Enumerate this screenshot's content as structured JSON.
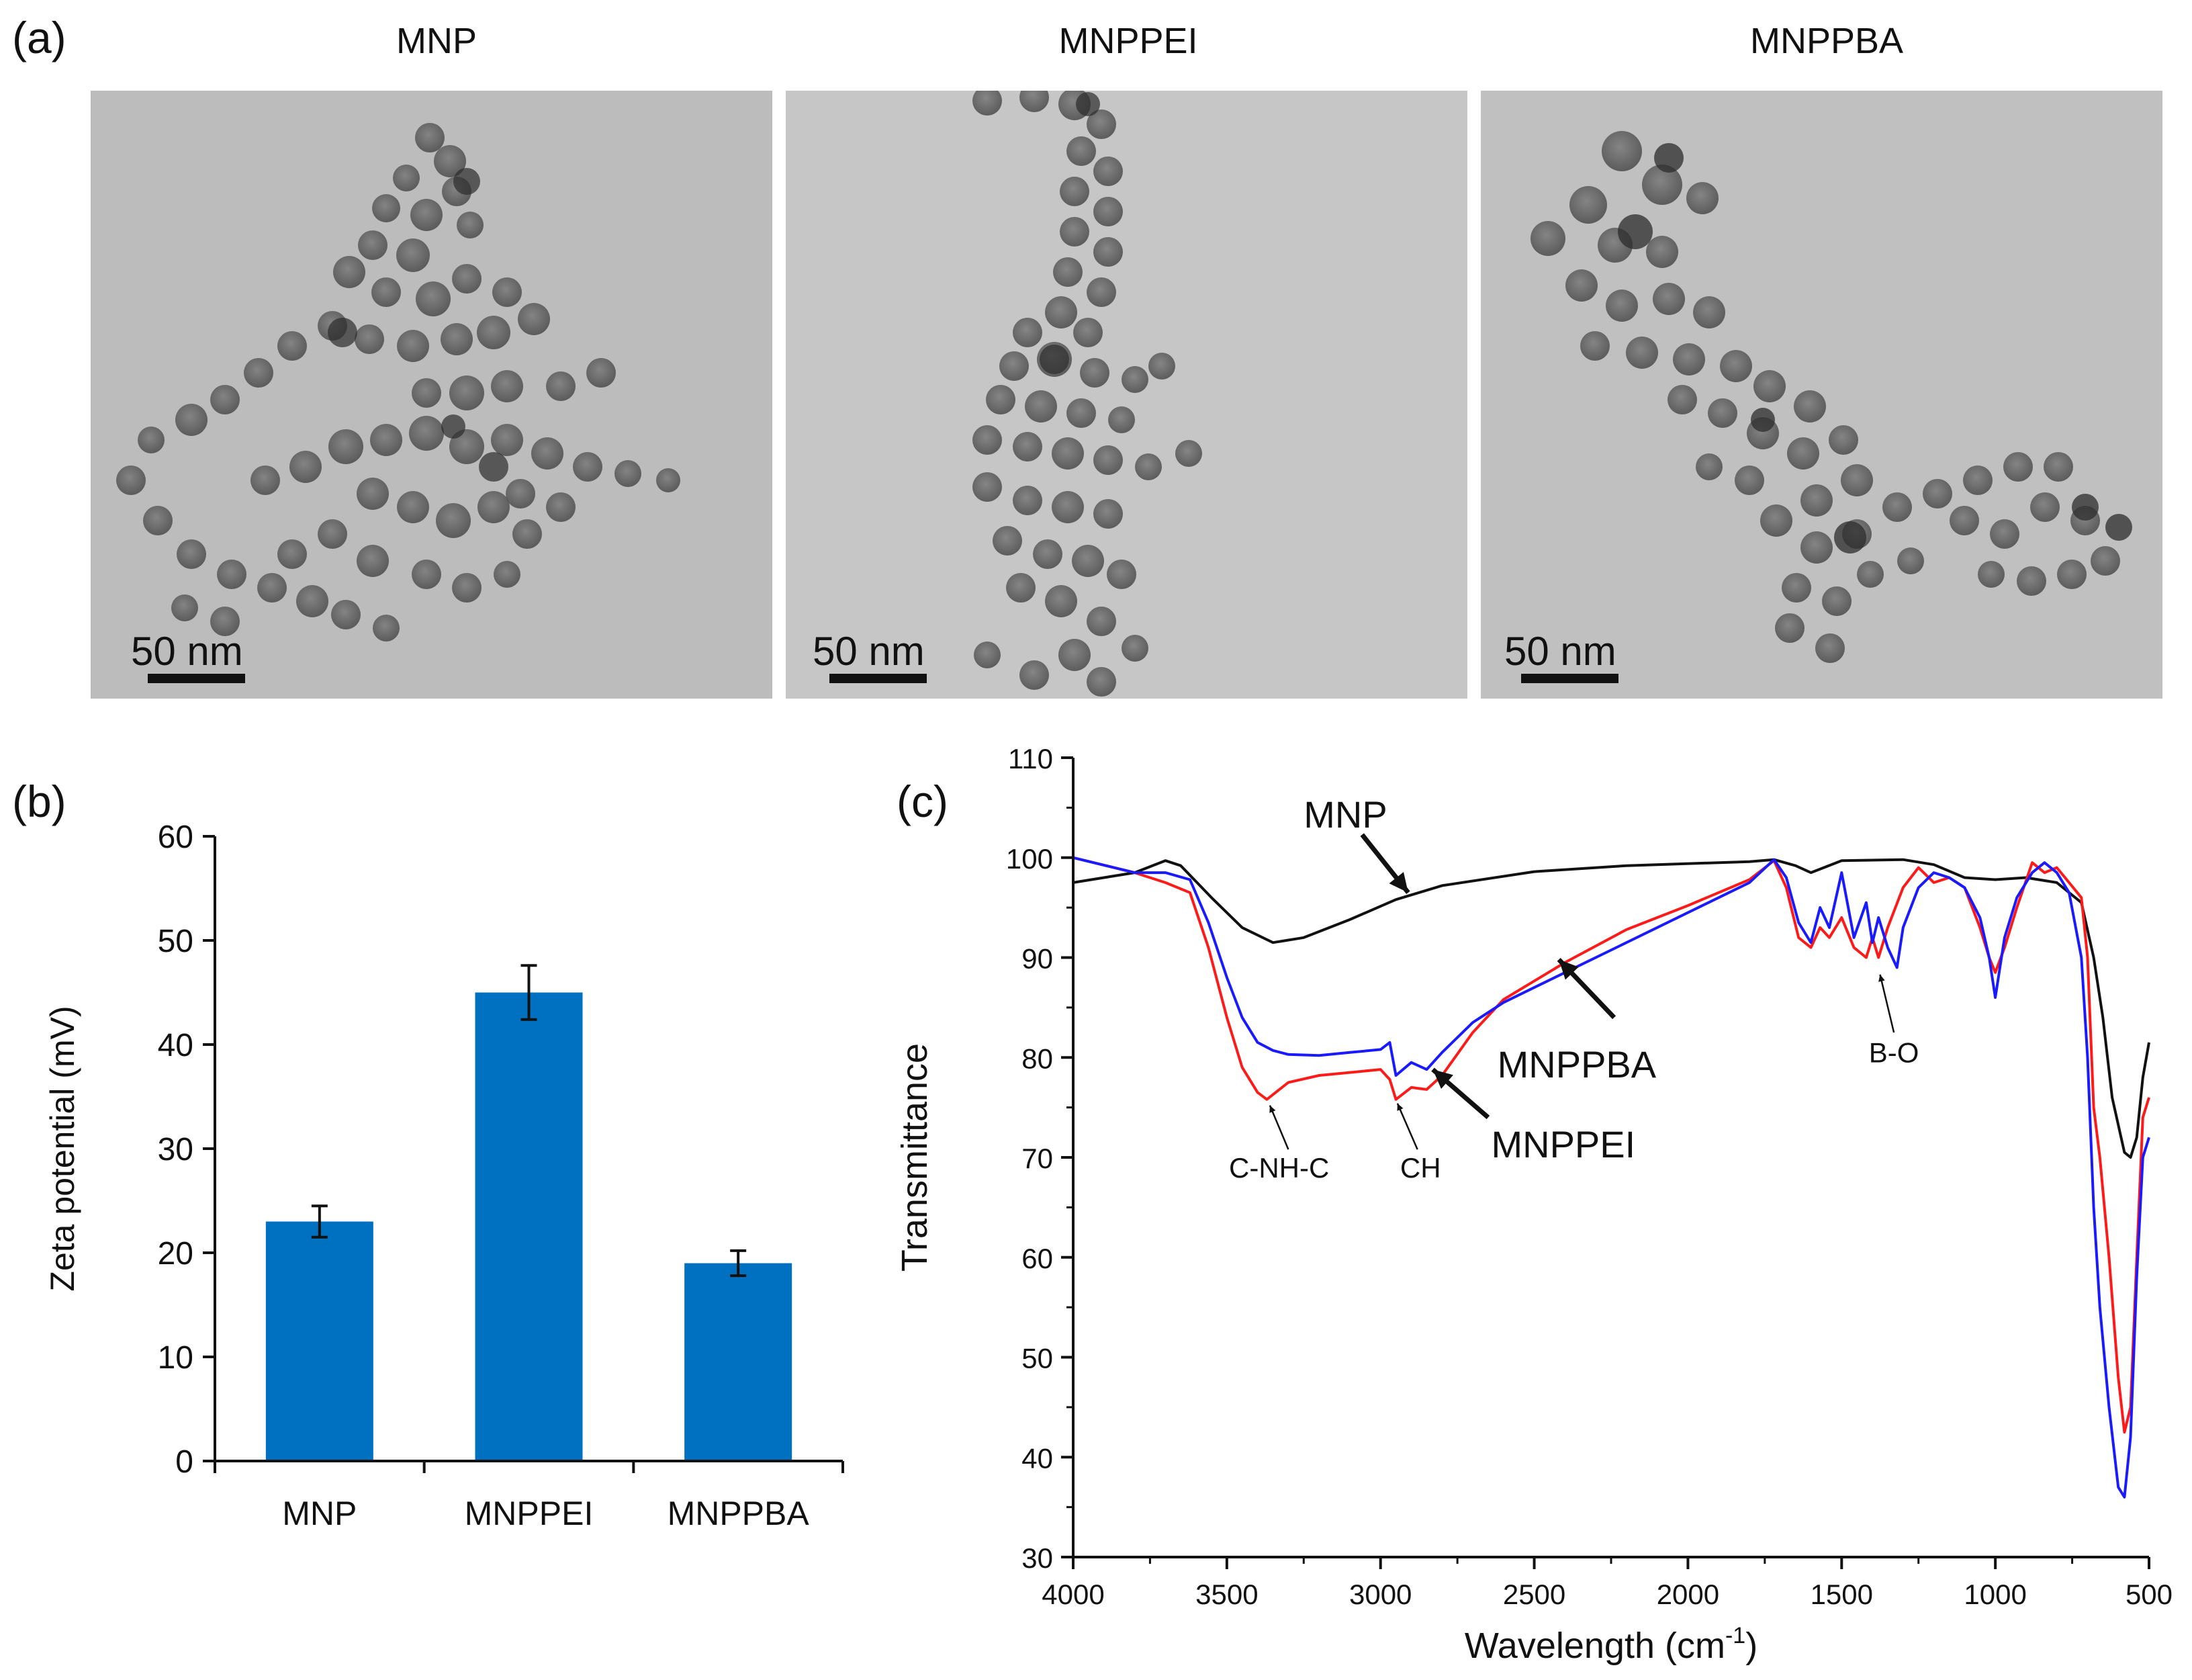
{
  "panel_a": {
    "label": "(a)",
    "images": [
      {
        "title": "MNP",
        "scale_bar": "50 nm"
      },
      {
        "title": "MNPPEI",
        "scale_bar": "50 nm"
      },
      {
        "title": "MNPPBA",
        "scale_bar": "50 nm"
      }
    ]
  },
  "panel_b_label": "(b)",
  "panel_c_label": "(c)",
  "colors": {
    "bar": "#0070c0",
    "mnp": "#111111",
    "mnppei": "#ff1a1a",
    "mnppba": "#1a1aff",
    "tem_bg": "#bdbdbd"
  },
  "chart_data": [
    {
      "type": "bar",
      "title": "",
      "xlabel": "",
      "ylabel": "Zeta potential (mV)",
      "categories": [
        "MNP",
        "MNPPEI",
        "MNPPBA"
      ],
      "values": [
        23,
        45,
        19
      ],
      "errors": [
        1.5,
        2.6,
        1.2
      ],
      "ylim": [
        0,
        60
      ],
      "yticks": [
        0,
        10,
        20,
        30,
        40,
        50,
        60
      ],
      "grid": false
    },
    {
      "type": "line",
      "title": "",
      "xlabel": "Wavelength (cm",
      "xlabel_sup": "-1",
      "xlabel_end": ")",
      "ylabel": "Transmittance",
      "xlim": [
        4000,
        500
      ],
      "ylim": [
        30,
        110
      ],
      "xticks": [
        4000,
        3500,
        3000,
        2500,
        2000,
        1500,
        1000,
        500
      ],
      "yticks": [
        30,
        40,
        50,
        60,
        70,
        80,
        90,
        100,
        110
      ],
      "series": [
        {
          "name": "MNP",
          "color": "#111111",
          "x": [
            4000,
            3800,
            3700,
            3650,
            3550,
            3450,
            3350,
            3250,
            3100,
            2950,
            2800,
            2500,
            2200,
            1800,
            1720,
            1650,
            1600,
            1500,
            1300,
            1200,
            1100,
            1000,
            900,
            800,
            720,
            680,
            650,
            620,
            580,
            560,
            540,
            520,
            500
          ],
          "y": [
            97.5,
            98.5,
            99.7,
            99.2,
            96,
            93,
            91.5,
            92,
            93.8,
            95.8,
            97.2,
            98.6,
            99.2,
            99.6,
            99.8,
            99.2,
            98.5,
            99.7,
            99.8,
            99.3,
            98,
            97.8,
            98,
            97.5,
            95.5,
            90,
            84,
            76,
            70.5,
            70,
            72,
            78,
            81.5
          ]
        },
        {
          "name": "MNPPEI",
          "color": "#ff1a1a",
          "x": [
            4000,
            3800,
            3700,
            3620,
            3560,
            3500,
            3450,
            3400,
            3370,
            3300,
            3200,
            3100,
            3000,
            2970,
            2950,
            2900,
            2850,
            2800,
            2700,
            2600,
            2400,
            2200,
            2000,
            1800,
            1720,
            1680,
            1640,
            1600,
            1570,
            1540,
            1500,
            1460,
            1420,
            1400,
            1380,
            1350,
            1300,
            1250,
            1200,
            1150,
            1100,
            1050,
            1020,
            1000,
            970,
            930,
            880,
            840,
            800,
            760,
            720,
            700,
            680,
            660,
            630,
            600,
            580,
            560,
            540,
            520,
            500
          ],
          "y": [
            100,
            98.5,
            97.5,
            96.5,
            91,
            84,
            79,
            76.5,
            75.8,
            77.5,
            78.2,
            78.5,
            78.8,
            77.8,
            75.8,
            77,
            76.8,
            78.2,
            82.5,
            85.8,
            89.5,
            92.8,
            95.2,
            97.8,
            99.7,
            97,
            92,
            91,
            93,
            92,
            94,
            91,
            90,
            92,
            90,
            93,
            97,
            99,
            97.5,
            98,
            97,
            93,
            90,
            88.5,
            91,
            95,
            99.5,
            98.5,
            99,
            97.5,
            96,
            90,
            75,
            70,
            60,
            48,
            42.5,
            45,
            60,
            74,
            76
          ]
        },
        {
          "name": "MNPPBA",
          "color": "#1a1aff",
          "x": [
            4000,
            3800,
            3700,
            3620,
            3560,
            3500,
            3450,
            3400,
            3350,
            3300,
            3200,
            3100,
            3000,
            2970,
            2950,
            2900,
            2850,
            2800,
            2700,
            2600,
            2400,
            2200,
            2000,
            1800,
            1720,
            1680,
            1640,
            1600,
            1570,
            1540,
            1500,
            1460,
            1420,
            1400,
            1380,
            1350,
            1320,
            1300,
            1250,
            1200,
            1150,
            1100,
            1050,
            1020,
            1000,
            970,
            930,
            880,
            840,
            800,
            760,
            720,
            700,
            680,
            660,
            630,
            600,
            580,
            560,
            540,
            520,
            500
          ],
          "y": [
            100,
            98.5,
            98.5,
            97.8,
            93.5,
            88,
            84,
            81.5,
            80.7,
            80.3,
            80.2,
            80.5,
            80.8,
            81.5,
            78.2,
            79.5,
            78.8,
            80.5,
            83.5,
            85.5,
            88.5,
            91.5,
            94.5,
            97.5,
            99.8,
            98,
            93.5,
            91.5,
            95,
            93,
            98.5,
            92,
            95.5,
            91.5,
            94,
            91,
            89,
            93,
            97,
            98.5,
            98,
            97,
            94,
            90,
            86,
            92,
            96,
            98.5,
            99.5,
            98.5,
            96.5,
            90,
            80,
            65,
            55,
            45,
            37,
            36,
            42,
            58,
            70,
            72
          ]
        }
      ],
      "labels": [
        "MNP",
        "MNPPBA",
        "MNPPEI"
      ],
      "annotations": [
        "C-NH-C",
        "CH",
        "B-O"
      ]
    }
  ]
}
